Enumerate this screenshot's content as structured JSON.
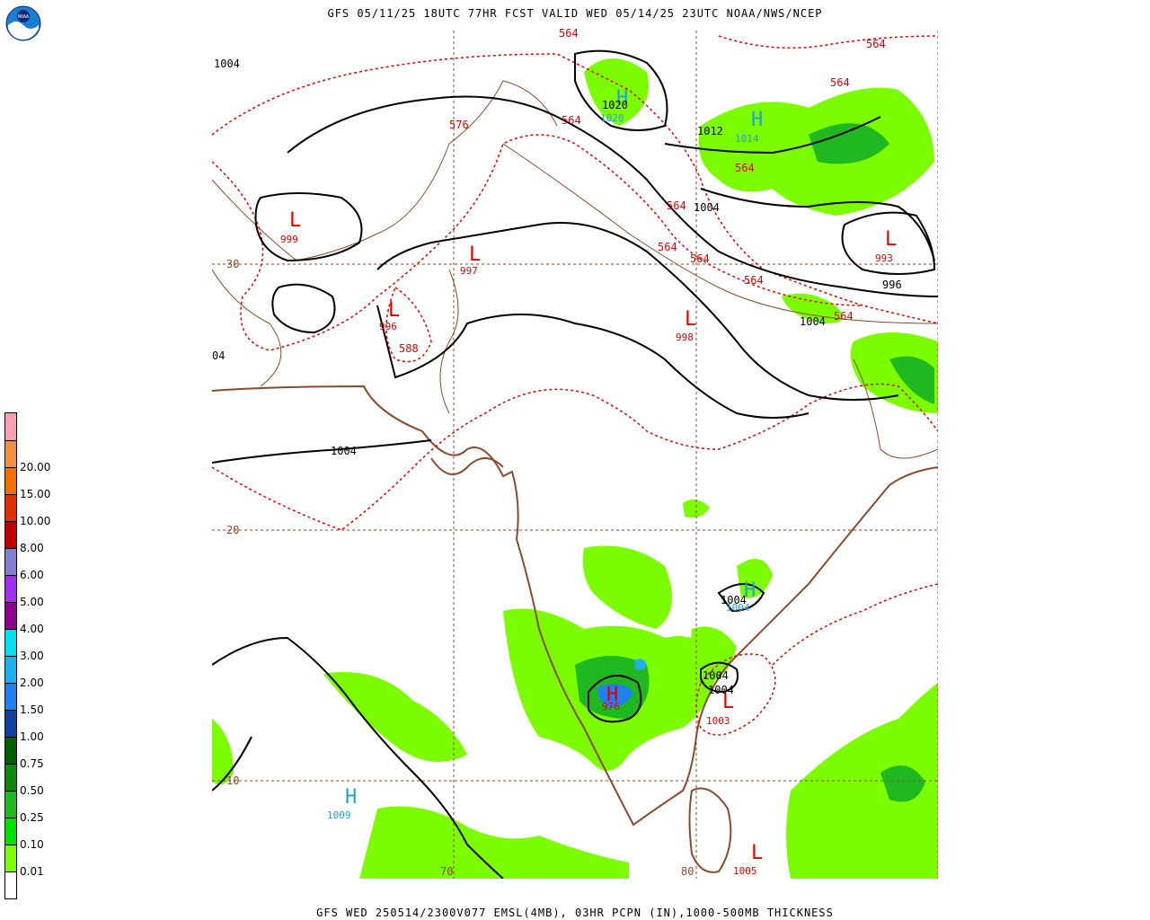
{
  "header": {
    "title": "GFS 05/11/25 18UTC 77HR FCST VALID WED 05/14/25 23UTC NOAA/NWS/NCEP"
  },
  "footer": {
    "title": "GFS WED 250514/2300V077 EMSL(4MB), 03HR PCPN (IN),1000-500MB THICKNESS"
  },
  "logo": {
    "label": "NOAA",
    "colors": {
      "outer": "#1a7fd4",
      "inner": "#0a2a7a"
    }
  },
  "legend": {
    "items": [
      {
        "label": "",
        "color": "#ffffff"
      },
      {
        "label": "0.01",
        "color": "#7cfc00"
      },
      {
        "label": "0.10",
        "color": "#00e000"
      },
      {
        "label": "0.25",
        "color": "#20b820"
      },
      {
        "label": "0.50",
        "color": "#108810"
      },
      {
        "label": "0.75",
        "color": "#006000"
      },
      {
        "label": "1.00",
        "color": "#1040a0"
      },
      {
        "label": "1.50",
        "color": "#2080f0"
      },
      {
        "label": "2.00",
        "color": "#20b0f0"
      },
      {
        "label": "3.00",
        "color": "#00e0f0"
      },
      {
        "label": "4.00",
        "color": "#900090"
      },
      {
        "label": "5.00",
        "color": "#a030f0"
      },
      {
        "label": "6.00",
        "color": "#8080d0"
      },
      {
        "label": "8.00",
        "color": "#c00000"
      },
      {
        "label": "10.00",
        "color": "#e03000"
      },
      {
        "label": "15.00",
        "color": "#f07000"
      },
      {
        "label": "20.00",
        "color": "#f09040"
      },
      {
        "label": "",
        "color": "#f8a0b0"
      }
    ]
  },
  "grid_labels": {
    "lat30": "30",
    "lat20": "20",
    "lat10": "10",
    "lon70": "70",
    "lon80": "80"
  },
  "pressure_centers": [
    {
      "type": "L",
      "value": "999"
    },
    {
      "type": "L",
      "value": "997"
    },
    {
      "type": "L",
      "value": "996"
    },
    {
      "type": "L",
      "value": "998"
    },
    {
      "type": "L",
      "value": "993"
    },
    {
      "type": "H",
      "value": "1020"
    },
    {
      "type": "H",
      "value": "1014"
    },
    {
      "type": "H",
      "value": "1004"
    },
    {
      "type": "H",
      "value": "976"
    },
    {
      "type": "L",
      "value": "1003"
    },
    {
      "type": "H",
      "value": "1009"
    },
    {
      "type": "L",
      "value": "1005"
    }
  ],
  "isobar_labels": [
    "1004",
    "1020",
    "1012",
    "1004",
    "996",
    "1004",
    "1004",
    "1004",
    "1004",
    "1004",
    "04"
  ],
  "thickness_labels": [
    "564",
    "564",
    "564",
    "564",
    "576",
    "564",
    "564",
    "564",
    "564",
    "564",
    "564",
    "588",
    "564"
  ],
  "colors": {
    "isobar": "#000000",
    "thickness": "#e00000",
    "coast": "#8b4a2b",
    "grid": "#8b4a2b",
    "high": "#20a0e0",
    "low": "#e00000"
  }
}
